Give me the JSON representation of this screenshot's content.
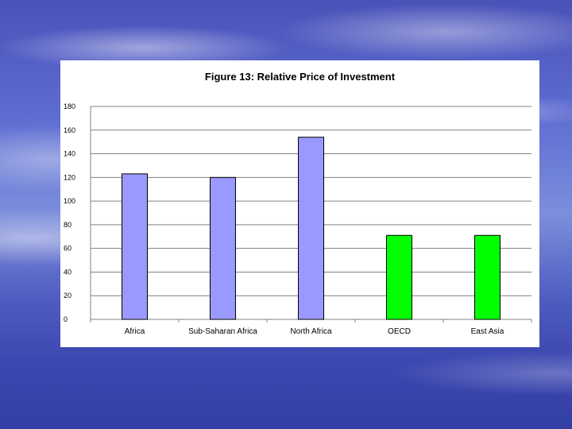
{
  "chart_data": {
    "type": "bar",
    "title": "Figure 13: Relative Price of Investment",
    "xlabel": "",
    "ylabel": "",
    "categories": [
      "Africa",
      "Sub-Saharan Africa",
      "North Africa",
      "OECD",
      "East Asia"
    ],
    "values": [
      123,
      120,
      154,
      71,
      71
    ],
    "bar_colors": [
      "#9999ff",
      "#9999ff",
      "#9999ff",
      "#00ff00",
      "#00ff00"
    ],
    "ylim": [
      0,
      180
    ],
    "yticks": [
      0,
      20,
      40,
      60,
      80,
      100,
      120,
      140,
      160,
      180
    ],
    "grid": true,
    "legend": "none"
  }
}
